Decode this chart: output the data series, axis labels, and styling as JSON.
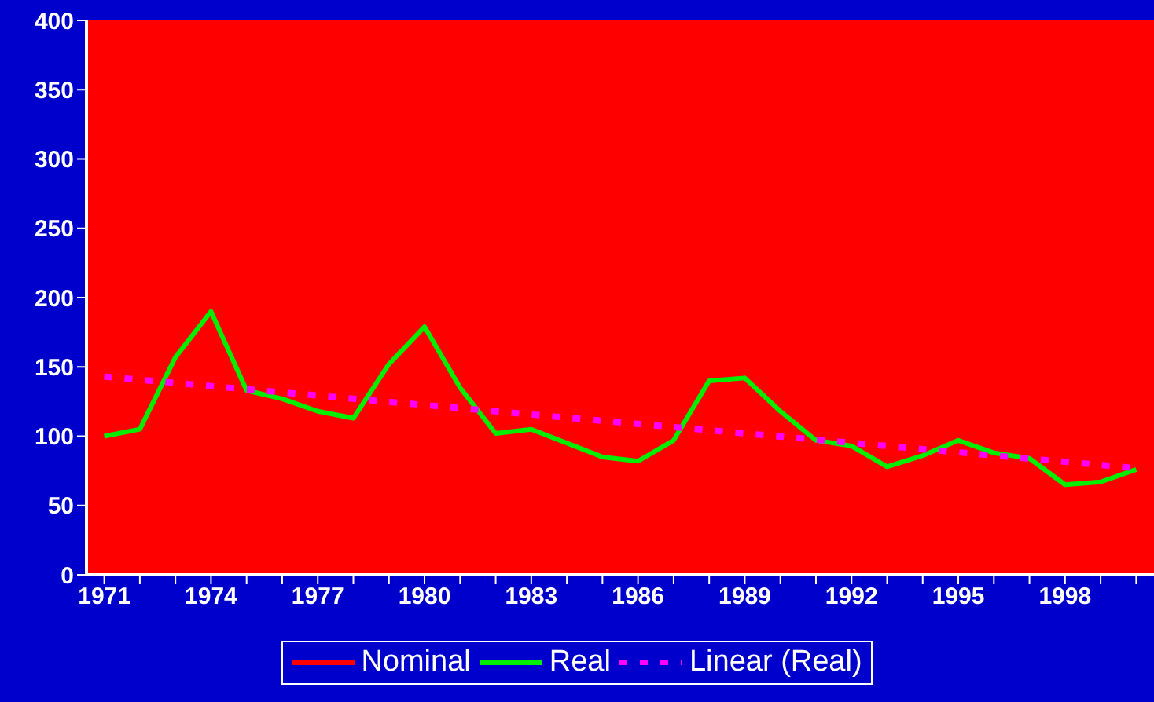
{
  "chart_data": {
    "type": "line",
    "x": [
      1971,
      1972,
      1973,
      1974,
      1975,
      1976,
      1977,
      1978,
      1979,
      1980,
      1981,
      1982,
      1983,
      1984,
      1985,
      1986,
      1987,
      1988,
      1989,
      1990,
      1991,
      1992,
      1993,
      1994,
      1995,
      1996,
      1997,
      1998,
      1999,
      2000
    ],
    "series": [
      {
        "name": "Nominal",
        "color": "#ff0000",
        "values": [
          null,
          null,
          null,
          null,
          null,
          null,
          null,
          null,
          null,
          null,
          null,
          null,
          null,
          null,
          null,
          null,
          null,
          null,
          null,
          null,
          null,
          null,
          null,
          null,
          null,
          null,
          null,
          null,
          null,
          null
        ]
      },
      {
        "name": "Real",
        "color": "#00ee00",
        "values": [
          100,
          105,
          157,
          190,
          133,
          127,
          118,
          113,
          152,
          179,
          135,
          102,
          105,
          95,
          85,
          82,
          97,
          140,
          142,
          118,
          97,
          93,
          78,
          86,
          97,
          88,
          84,
          65,
          67,
          76
        ]
      },
      {
        "name": "Linear (Real)",
        "color": "#ff00ff",
        "line_style": "dotted",
        "x": [
          1971,
          2000
        ],
        "values": [
          143,
          77
        ]
      }
    ],
    "xlim": [
      1970.5,
      2000.5
    ],
    "xticks": [
      1971,
      {
        "value": 1972,
        "label": null
      },
      {
        "value": 1973,
        "label": null
      },
      1974,
      {
        "value": 1975,
        "label": null
      },
      {
        "value": 1976,
        "label": null
      },
      1977,
      {
        "value": 1978,
        "label": null
      },
      {
        "value": 1979,
        "label": null
      },
      1980,
      {
        "value": 1981,
        "label": null
      },
      {
        "value": 1982,
        "label": null
      },
      1983,
      {
        "value": 1984,
        "label": null
      },
      {
        "value": 1985,
        "label": null
      },
      1986,
      {
        "value": 1987,
        "label": null
      },
      {
        "value": 1988,
        "label": null
      },
      1989,
      {
        "value": 1990,
        "label": null
      },
      {
        "value": 1991,
        "label": null
      },
      1992,
      {
        "value": 1993,
        "label": null
      },
      {
        "value": 1994,
        "label": null
      },
      1995,
      {
        "value": 1996,
        "label": null
      },
      {
        "value": 1997,
        "label": null
      },
      1998,
      {
        "value": 1999,
        "label": null
      },
      {
        "value": 2000,
        "label": null
      }
    ],
    "ylim": [
      0,
      400
    ],
    "yticks": [
      0,
      50,
      100,
      150,
      200,
      250,
      300,
      350,
      400
    ],
    "legend": "bottom",
    "marker": "none",
    "line_style": "solid"
  }
}
